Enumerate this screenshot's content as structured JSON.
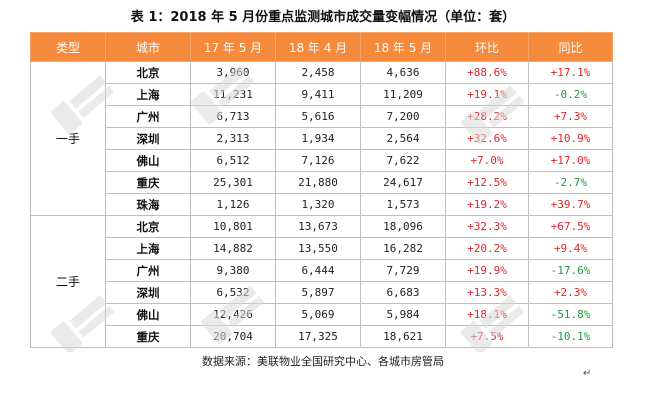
{
  "title": "表 1：2018 年 5 月份重点监测城市成交量变幅情况（单位：套）",
  "headers": [
    "类型",
    "城市",
    "17 年 5 月",
    "18 年 4 月",
    "18 年 5 月",
    "环比",
    "同比"
  ],
  "sections": [
    {
      "type": "一手",
      "rows": [
        {
          "city": "北京",
          "v1": "3,960",
          "v2": "2,458",
          "v3": "4,636",
          "mom": "+88.6%",
          "yoy": "+17.1%"
        },
        {
          "city": "上海",
          "v1": "11,231",
          "v2": "9,411",
          "v3": "11,209",
          "mom": "+19.1%",
          "yoy": "-0.2%"
        },
        {
          "city": "广州",
          "v1": "6,713",
          "v2": "5,616",
          "v3": "7,200",
          "mom": "+28.2%",
          "yoy": "+7.3%"
        },
        {
          "city": "深圳",
          "v1": "2,313",
          "v2": "1,934",
          "v3": "2,564",
          "mom": "+32.6%",
          "yoy": "+10.9%"
        },
        {
          "city": "佛山",
          "v1": "6,512",
          "v2": "7,126",
          "v3": "7,622",
          "mom": "+7.0%",
          "yoy": "+17.0%"
        },
        {
          "city": "重庆",
          "v1": "25,301",
          "v2": "21,880",
          "v3": "24,617",
          "mom": "+12.5%",
          "yoy": "-2.7%"
        },
        {
          "city": "珠海",
          "v1": "1,126",
          "v2": "1,320",
          "v3": "1,573",
          "mom": "+19.2%",
          "yoy": "+39.7%"
        }
      ]
    },
    {
      "type": "二手",
      "rows": [
        {
          "city": "北京",
          "v1": "10,801",
          "v2": "13,673",
          "v3": "18,096",
          "mom": "+32.3%",
          "yoy": "+67.5%"
        },
        {
          "city": "上海",
          "v1": "14,882",
          "v2": "13,550",
          "v3": "16,282",
          "mom": "+20.2%",
          "yoy": "+9.4%"
        },
        {
          "city": "广州",
          "v1": "9,380",
          "v2": "6,444",
          "v3": "7,729",
          "mom": "+19.9%",
          "yoy": "-17.6%"
        },
        {
          "city": "深圳",
          "v1": "6,532",
          "v2": "5,897",
          "v3": "6,683",
          "mom": "+13.3%",
          "yoy": "+2.3%"
        },
        {
          "city": "佛山",
          "v1": "12,426",
          "v2": "5,069",
          "v3": "5,984",
          "mom": "+18.1%",
          "yoy": "-51.8%"
        },
        {
          "city": "重庆",
          "v1": "20,704",
          "v2": "17,325",
          "v3": "18,621",
          "mom": "+7.5%",
          "yoy": "-10.1%"
        }
      ]
    }
  ],
  "source": "数据来源：美联物业全国研究中心、各城市房管局",
  "paragraph_mark": "↵",
  "colors": {
    "header_bg": "#f58a3c",
    "positive": "#e0262b",
    "negative": "#1f9a3e"
  }
}
